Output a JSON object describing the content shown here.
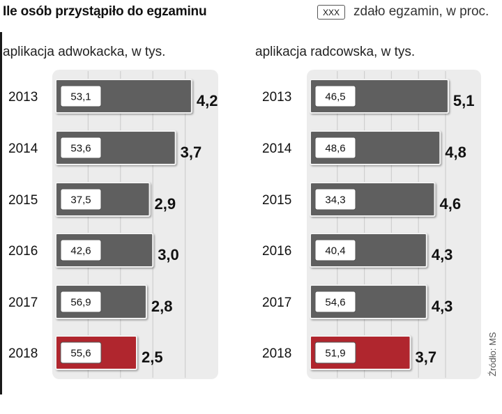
{
  "header": {
    "title": "Ile osób przystąpiło do egzaminu",
    "legend_box_label": "XXX",
    "legend_text": "zdało egzamin, w proc.",
    "source": "Źródło: MS"
  },
  "colors": {
    "bar_default": "#5e5e5e",
    "bar_highlight": "#b0282e",
    "panel_bg": "#ececec",
    "grid": "#cfcfcf"
  },
  "chart_data": [
    {
      "type": "bar",
      "orientation": "horizontal",
      "title": "aplikacja adwokacka, w tys.",
      "categories": [
        "2013",
        "2014",
        "2015",
        "2016",
        "2017",
        "2018"
      ],
      "series": [
        {
          "name": "przystąpiło, w tys.",
          "values": [
            4.2,
            3.7,
            2.9,
            3.0,
            2.8,
            2.5
          ]
        },
        {
          "name": "zdało egzamin, w proc.",
          "values": [
            53.1,
            53.6,
            37.5,
            42.6,
            56.9,
            55.6
          ]
        }
      ],
      "labels_outside": [
        "4,2",
        "3,7",
        "2,9",
        "3,0",
        "2,8",
        "2,5"
      ],
      "labels_inside": [
        "53,1",
        "53,6",
        "37,5",
        "42,6",
        "56,9",
        "55,6"
      ],
      "highlight_category": "2018",
      "xlim": [
        0,
        5.5
      ]
    },
    {
      "type": "bar",
      "orientation": "horizontal",
      "title": "aplikacja radcowska, w tys.",
      "categories": [
        "2013",
        "2014",
        "2015",
        "2016",
        "2017",
        "2018"
      ],
      "series": [
        {
          "name": "przystąpiło, w tys.",
          "values": [
            5.1,
            4.8,
            4.6,
            4.3,
            4.3,
            3.7
          ]
        },
        {
          "name": "zdało egzamin, w proc.",
          "values": [
            46.5,
            48.6,
            34.3,
            40.4,
            54.6,
            51.9
          ]
        }
      ],
      "labels_outside": [
        "5,1",
        "4,8",
        "4,6",
        "4,3",
        "4,3",
        "3,7"
      ],
      "labels_inside": [
        "46,5",
        "48,6",
        "34,3",
        "40,4",
        "54,6",
        "51,9"
      ],
      "highlight_category": "2018",
      "xlim": [
        0,
        5.5
      ]
    }
  ]
}
